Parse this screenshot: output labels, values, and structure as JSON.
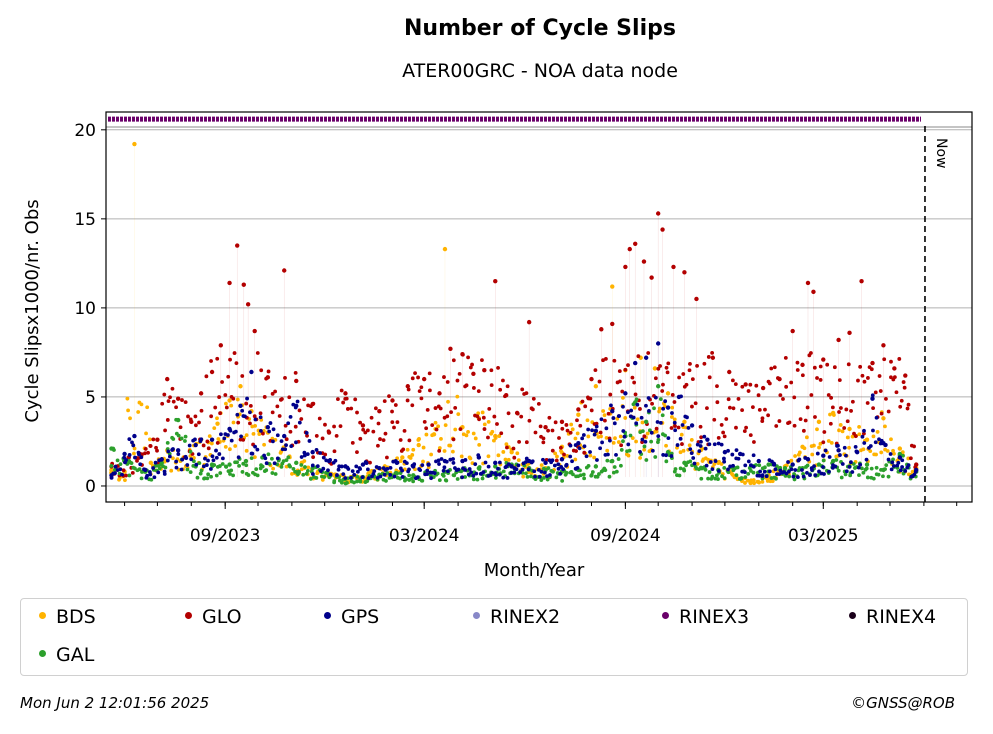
{
  "chart_data": {
    "type": "scatter",
    "title": "Number of Cycle Slips",
    "subtitle": "ATER00GRC - NOA data node",
    "xlabel": "Month/Year",
    "ylabel": "Cycle Slipsx1000/nr. Obs",
    "x_range": [
      "2023-05-15",
      "2025-07-15"
    ],
    "ylim": [
      -0.9,
      21
    ],
    "yticks": [
      0,
      5,
      10,
      15,
      20
    ],
    "xticks": [
      {
        "date": "2023-09-01",
        "label": "09/2023"
      },
      {
        "date": "2024-03-01",
        "label": "03/2024"
      },
      {
        "date": "2024-09-01",
        "label": "09/2024"
      },
      {
        "date": "2025-03-01",
        "label": "03/2025"
      }
    ],
    "grid": "horizontal",
    "now_line": {
      "date": "2025-06-02",
      "label": "Now"
    },
    "rinex_band_value": 20.6,
    "series": [
      {
        "name": "BDS",
        "color": "#ffb300",
        "points": [
          [
            "2023-05-20",
            0.9
          ],
          [
            "2023-06-01",
            0.8
          ],
          [
            "2023-06-10",
            19.2
          ],
          [
            "2023-06-25",
            1.3
          ],
          [
            "2023-07-10",
            2.0
          ],
          [
            "2023-07-25",
            1.6
          ],
          [
            "2023-08-10",
            2.6
          ],
          [
            "2023-08-25",
            3.5
          ],
          [
            "2023-09-05",
            4.8
          ],
          [
            "2023-09-15",
            5.6
          ],
          [
            "2023-09-25",
            4.2
          ],
          [
            "2023-10-10",
            3.0
          ],
          [
            "2023-10-25",
            2.1
          ],
          [
            "2023-11-10",
            1.3
          ],
          [
            "2023-11-25",
            0.8
          ],
          [
            "2023-12-10",
            0.6
          ],
          [
            "2023-12-25",
            0.5
          ],
          [
            "2024-01-10",
            0.7
          ],
          [
            "2024-01-25",
            1.1
          ],
          [
            "2024-02-10",
            1.6
          ],
          [
            "2024-02-25",
            2.3
          ],
          [
            "2024-03-10",
            2.9
          ],
          [
            "2024-03-20",
            13.3
          ],
          [
            "2024-04-05",
            3.3
          ],
          [
            "2024-04-20",
            3.8
          ],
          [
            "2024-05-05",
            2.8
          ],
          [
            "2024-05-20",
            1.9
          ],
          [
            "2024-06-05",
            1.3
          ],
          [
            "2024-06-20",
            1.0
          ],
          [
            "2024-07-05",
            2.2
          ],
          [
            "2024-07-20",
            4.0
          ],
          [
            "2024-08-05",
            5.6
          ],
          [
            "2024-08-20",
            11.2
          ],
          [
            "2024-09-01",
            6.5
          ],
          [
            "2024-09-15",
            7.2
          ],
          [
            "2024-09-28",
            6.6
          ],
          [
            "2024-10-10",
            5.2
          ],
          [
            "2024-10-25",
            3.6
          ],
          [
            "2024-11-10",
            2.1
          ],
          [
            "2024-11-25",
            1.3
          ],
          [
            "2024-12-10",
            0.5
          ],
          [
            "2024-12-25",
            0.3
          ],
          [
            "2025-01-10",
            0.6
          ],
          [
            "2025-01-25",
            1.1
          ],
          [
            "2025-02-10",
            2.2
          ],
          [
            "2025-02-25",
            3.6
          ],
          [
            "2025-03-10",
            4.1
          ],
          [
            "2025-03-25",
            3.2
          ],
          [
            "2025-04-10",
            2.6
          ],
          [
            "2025-04-25",
            3.8
          ],
          [
            "2025-05-10",
            2.1
          ],
          [
            "2025-05-25",
            1.0
          ]
        ]
      },
      {
        "name": "GLO",
        "color": "#b30000",
        "points": [
          [
            "2023-05-20",
            1.1
          ],
          [
            "2023-06-01",
            1.4
          ],
          [
            "2023-06-15",
            1.8
          ],
          [
            "2023-07-01",
            2.6
          ],
          [
            "2023-07-10",
            6.0
          ],
          [
            "2023-07-20",
            4.9
          ],
          [
            "2023-08-01",
            3.6
          ],
          [
            "2023-08-10",
            5.2
          ],
          [
            "2023-08-20",
            6.4
          ],
          [
            "2023-08-28",
            7.9
          ],
          [
            "2023-09-05",
            11.4
          ],
          [
            "2023-09-12",
            13.5
          ],
          [
            "2023-09-18",
            11.3
          ],
          [
            "2023-09-22",
            10.2
          ],
          [
            "2023-09-28",
            8.7
          ],
          [
            "2023-10-10",
            6.1
          ],
          [
            "2023-10-25",
            12.1
          ],
          [
            "2023-11-05",
            5.9
          ],
          [
            "2023-11-20",
            4.6
          ],
          [
            "2023-12-05",
            3.0
          ],
          [
            "2023-12-20",
            5.2
          ],
          [
            "2024-01-05",
            3.4
          ],
          [
            "2024-01-20",
            4.2
          ],
          [
            "2024-02-01",
            4.8
          ],
          [
            "2024-02-15",
            5.6
          ],
          [
            "2024-03-01",
            6.0
          ],
          [
            "2024-03-15",
            5.2
          ],
          [
            "2024-03-25",
            7.7
          ],
          [
            "2024-04-05",
            7.4
          ],
          [
            "2024-04-15",
            6.3
          ],
          [
            "2024-04-25",
            6.5
          ],
          [
            "2024-05-05",
            11.5
          ],
          [
            "2024-05-15",
            5.1
          ],
          [
            "2024-05-25",
            4.1
          ],
          [
            "2024-06-05",
            9.2
          ],
          [
            "2024-06-20",
            3.3
          ],
          [
            "2024-07-05",
            3.6
          ],
          [
            "2024-07-20",
            4.3
          ],
          [
            "2024-08-01",
            6.0
          ],
          [
            "2024-08-10",
            8.8
          ],
          [
            "2024-08-20",
            9.1
          ],
          [
            "2024-09-01",
            12.3
          ],
          [
            "2024-09-05",
            13.3
          ],
          [
            "2024-09-10",
            13.6
          ],
          [
            "2024-09-18",
            12.6
          ],
          [
            "2024-09-25",
            11.7
          ],
          [
            "2024-10-01",
            15.3
          ],
          [
            "2024-10-05",
            14.4
          ],
          [
            "2024-10-15",
            12.3
          ],
          [
            "2024-10-25",
            12.0
          ],
          [
            "2024-11-05",
            10.5
          ],
          [
            "2024-11-20",
            7.2
          ],
          [
            "2024-12-05",
            6.4
          ],
          [
            "2024-12-20",
            5.7
          ],
          [
            "2025-01-05",
            5.5
          ],
          [
            "2025-01-20",
            6.0
          ],
          [
            "2025-02-01",
            8.7
          ],
          [
            "2025-02-10",
            6.8
          ],
          [
            "2025-02-15",
            11.4
          ],
          [
            "2025-02-20",
            10.9
          ],
          [
            "2025-03-01",
            7.1
          ],
          [
            "2025-03-15",
            8.2
          ],
          [
            "2025-03-25",
            8.6
          ],
          [
            "2025-04-05",
            11.5
          ],
          [
            "2025-04-15",
            6.9
          ],
          [
            "2025-04-25",
            7.9
          ],
          [
            "2025-05-05",
            6.6
          ],
          [
            "2025-05-15",
            6.2
          ],
          [
            "2025-05-25",
            1.2
          ]
        ]
      },
      {
        "name": "GPS",
        "color": "#00008b",
        "points": [
          [
            "2023-05-20",
            0.6
          ],
          [
            "2023-06-01",
            1.8
          ],
          [
            "2023-06-10",
            2.8
          ],
          [
            "2023-06-20",
            0.9
          ],
          [
            "2023-07-05",
            1.5
          ],
          [
            "2023-07-20",
            2.0
          ],
          [
            "2023-08-05",
            2.3
          ],
          [
            "2023-08-20",
            2.6
          ],
          [
            "2023-09-05",
            3.2
          ],
          [
            "2023-09-15",
            4.5
          ],
          [
            "2023-09-25",
            6.4
          ],
          [
            "2023-10-10",
            3.3
          ],
          [
            "2023-10-25",
            2.8
          ],
          [
            "2023-11-05",
            4.5
          ],
          [
            "2023-11-20",
            1.9
          ],
          [
            "2023-12-05",
            1.4
          ],
          [
            "2023-12-20",
            1.1
          ],
          [
            "2024-01-05",
            1.2
          ],
          [
            "2024-01-20",
            1.0
          ],
          [
            "2024-02-05",
            1.3
          ],
          [
            "2024-02-20",
            1.1
          ],
          [
            "2024-03-05",
            1.2
          ],
          [
            "2024-03-20",
            1.4
          ],
          [
            "2024-04-05",
            1.4
          ],
          [
            "2024-04-20",
            1.6
          ],
          [
            "2024-05-05",
            1.3
          ],
          [
            "2024-05-20",
            1.1
          ],
          [
            "2024-06-05",
            1.4
          ],
          [
            "2024-06-20",
            1.3
          ],
          [
            "2024-07-05",
            1.5
          ],
          [
            "2024-07-20",
            2.4
          ],
          [
            "2024-08-05",
            3.1
          ],
          [
            "2024-08-20",
            4.2
          ],
          [
            "2024-09-01",
            5.2
          ],
          [
            "2024-09-10",
            6.9
          ],
          [
            "2024-09-20",
            7.2
          ],
          [
            "2024-10-01",
            8.0
          ],
          [
            "2024-10-10",
            4.4
          ],
          [
            "2024-10-20",
            5.0
          ],
          [
            "2024-11-01",
            3.4
          ],
          [
            "2024-11-15",
            2.6
          ],
          [
            "2024-12-01",
            1.9
          ],
          [
            "2024-12-15",
            1.8
          ],
          [
            "2025-01-01",
            1.4
          ],
          [
            "2025-01-15",
            1.2
          ],
          [
            "2025-02-01",
            1.2
          ],
          [
            "2025-02-15",
            1.5
          ],
          [
            "2025-03-01",
            1.7
          ],
          [
            "2025-03-15",
            2.0
          ],
          [
            "2025-04-01",
            1.9
          ],
          [
            "2025-04-15",
            4.9
          ],
          [
            "2025-04-25",
            2.4
          ],
          [
            "2025-05-10",
            1.6
          ],
          [
            "2025-05-25",
            0.9
          ]
        ]
      },
      {
        "name": "RINEX2",
        "color": "#8888c8",
        "points": []
      },
      {
        "name": "RINEX3",
        "color": "#6a006a",
        "band": true
      },
      {
        "name": "RINEX4",
        "color": "#1a001a",
        "points": []
      },
      {
        "name": "GAL",
        "color": "#2ca02c",
        "points": [
          [
            "2023-05-20",
            2.1
          ],
          [
            "2023-06-05",
            1.4
          ],
          [
            "2023-06-20",
            0.8
          ],
          [
            "2023-07-05",
            1.3
          ],
          [
            "2023-07-20",
            3.7
          ],
          [
            "2023-08-05",
            1.1
          ],
          [
            "2023-08-20",
            1.2
          ],
          [
            "2023-09-05",
            1.2
          ],
          [
            "2023-09-20",
            1.4
          ],
          [
            "2023-10-05",
            1.6
          ],
          [
            "2023-10-20",
            1.5
          ],
          [
            "2023-11-05",
            1.3
          ],
          [
            "2023-11-20",
            1.0
          ],
          [
            "2023-12-05",
            0.6
          ],
          [
            "2023-12-20",
            0.4
          ],
          [
            "2024-01-05",
            0.5
          ],
          [
            "2024-01-20",
            0.6
          ],
          [
            "2024-02-05",
            0.7
          ],
          [
            "2024-02-20",
            0.6
          ],
          [
            "2024-03-05",
            0.7
          ],
          [
            "2024-03-20",
            0.8
          ],
          [
            "2024-04-05",
            0.9
          ],
          [
            "2024-04-20",
            1.0
          ],
          [
            "2024-05-05",
            1.1
          ],
          [
            "2024-05-20",
            1.2
          ],
          [
            "2024-06-05",
            1.0
          ],
          [
            "2024-06-20",
            0.9
          ],
          [
            "2024-07-05",
            0.8
          ],
          [
            "2024-07-20",
            0.9
          ],
          [
            "2024-08-05",
            1.1
          ],
          [
            "2024-08-20",
            1.4
          ],
          [
            "2024-09-01",
            2.8
          ],
          [
            "2024-09-10",
            4.7
          ],
          [
            "2024-09-20",
            3.6
          ],
          [
            "2024-10-01",
            5.6
          ],
          [
            "2024-10-10",
            1.9
          ],
          [
            "2024-10-25",
            1.3
          ],
          [
            "2024-11-10",
            1.0
          ],
          [
            "2024-11-25",
            0.9
          ],
          [
            "2024-12-10",
            1.0
          ],
          [
            "2024-12-25",
            1.1
          ],
          [
            "2025-01-10",
            1.2
          ],
          [
            "2025-01-25",
            1.0
          ],
          [
            "2025-02-10",
            1.0
          ],
          [
            "2025-02-25",
            1.2
          ],
          [
            "2025-03-10",
            1.4
          ],
          [
            "2025-03-25",
            1.1
          ],
          [
            "2025-04-10",
            1.2
          ],
          [
            "2025-04-25",
            0.9
          ],
          [
            "2025-05-10",
            1.8
          ],
          [
            "2025-05-25",
            0.8
          ]
        ]
      }
    ]
  },
  "legend": {
    "items": [
      {
        "label": "BDS",
        "color": "#ffb300"
      },
      {
        "label": "GLO",
        "color": "#b30000"
      },
      {
        "label": "GPS",
        "color": "#00008b"
      },
      {
        "label": "RINEX2",
        "color": "#8888c8"
      },
      {
        "label": "RINEX3",
        "color": "#6a006a"
      },
      {
        "label": "RINEX4",
        "color": "#1a001a"
      },
      {
        "label": "GAL",
        "color": "#2ca02c"
      }
    ]
  },
  "footer": {
    "timestamp": "Mon Jun  2 12:01:56 2025",
    "credit": "©GNSS@ROB"
  }
}
